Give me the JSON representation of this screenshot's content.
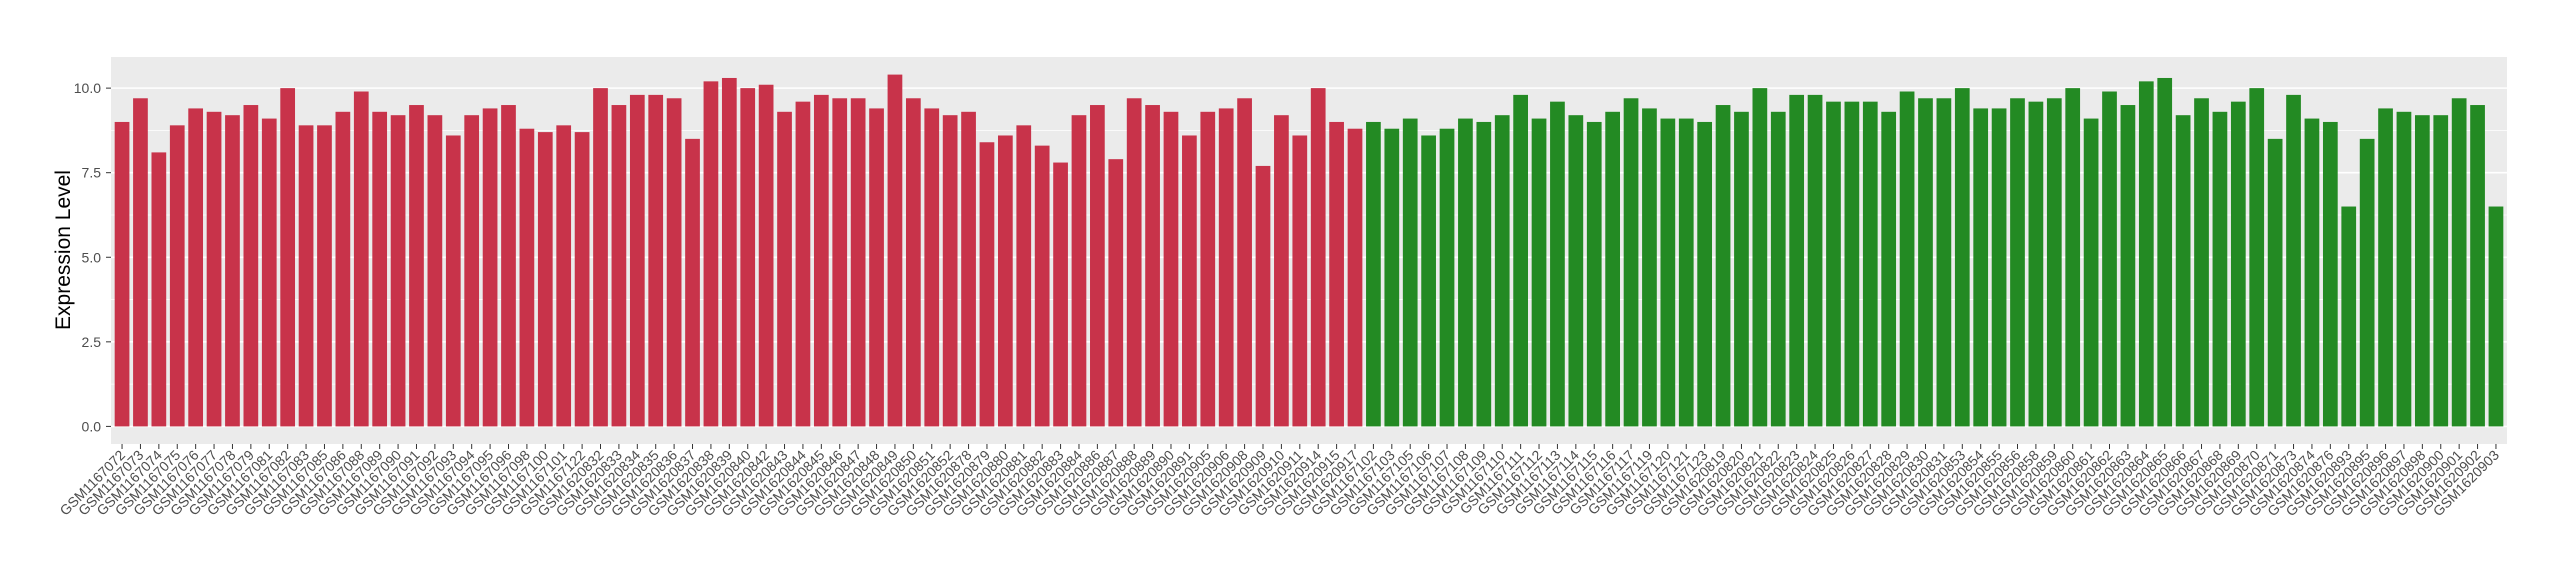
{
  "chart_data": {
    "type": "bar",
    "y_label": "Expression Level",
    "ylim": [
      -0.52,
      10.92
    ],
    "yticks": [
      {
        "value": 0,
        "label": "0.0"
      },
      {
        "value": 2.5,
        "label": "2.5"
      },
      {
        "value": 5,
        "label": "5.0"
      },
      {
        "value": 7.5,
        "label": "7.5"
      },
      {
        "value": 10,
        "label": "10.0"
      }
    ],
    "grid": true,
    "series": [
      {
        "color": "#c8334a",
        "categories": [
          "GSM1167072",
          "GSM1167073",
          "GSM1167074",
          "GSM1167075",
          "GSM1167076",
          "GSM1167077",
          "GSM1167078",
          "GSM1167079",
          "GSM1167081",
          "GSM1167082",
          "GSM1167083",
          "GSM1167085",
          "GSM1167086",
          "GSM1167088",
          "GSM1167089",
          "GSM1167090",
          "GSM1167091",
          "GSM1167092",
          "GSM1167093",
          "GSM1167094",
          "GSM1167095",
          "GSM1167096",
          "GSM1167098",
          "GSM1167100",
          "GSM1167101",
          "GSM1167122",
          "GSM1620832",
          "GSM1620833",
          "GSM1620834",
          "GSM1620835",
          "GSM1620836",
          "GSM1620837",
          "GSM1620838",
          "GSM1620839",
          "GSM1620840",
          "GSM1620842",
          "GSM1620843",
          "GSM1620844",
          "GSM1620845",
          "GSM1620846",
          "GSM1620847",
          "GSM1620848",
          "GSM1620849",
          "GSM1620850",
          "GSM1620851",
          "GSM1620852",
          "GSM1620878",
          "GSM1620879",
          "GSM1620880",
          "GSM1620881",
          "GSM1620882",
          "GSM1620883",
          "GSM1620884",
          "GSM1620886",
          "GSM1620887",
          "GSM1620888",
          "GSM1620889",
          "GSM1620890",
          "GSM1620891",
          "GSM1620905",
          "GSM1620906",
          "GSM1620908",
          "GSM1620909",
          "GSM1620910",
          "GSM1620911",
          "GSM1620914",
          "GSM1620915",
          "GSM1620917"
        ],
        "values": [
          9.0,
          9.7,
          8.1,
          8.9,
          9.4,
          9.3,
          9.2,
          9.5,
          9.1,
          10.0,
          8.9,
          8.9,
          9.3,
          9.9,
          9.3,
          9.2,
          9.5,
          9.2,
          8.6,
          9.2,
          9.4,
          9.5,
          8.8,
          8.7,
          8.9,
          8.7,
          10.0,
          9.5,
          9.8,
          9.8,
          9.7,
          8.5,
          10.2,
          10.3,
          10.0,
          10.1,
          9.3,
          9.6,
          9.8,
          9.7,
          9.7,
          9.4,
          10.4,
          9.7,
          9.4,
          9.2,
          9.3,
          8.4,
          8.6,
          8.9,
          8.3,
          7.8,
          9.2,
          9.5,
          7.9,
          9.7,
          9.5,
          9.3,
          8.6,
          9.3,
          9.4,
          9.7,
          7.7,
          9.2,
          8.6,
          10.0,
          9.0,
          8.8
        ]
      },
      {
        "color": "#238a23",
        "categories": [
          "GSM1167102",
          "GSM1167103",
          "GSM1167105",
          "GSM1167106",
          "GSM1167107",
          "GSM1167108",
          "GSM1167109",
          "GSM1167110",
          "GSM1167111",
          "GSM1167112",
          "GSM1167113",
          "GSM1167114",
          "GSM1167115",
          "GSM1167116",
          "GSM1167117",
          "GSM1167119",
          "GSM1167120",
          "GSM1167121",
          "GSM1167123",
          "GSM1620819",
          "GSM1620820",
          "GSM1620821",
          "GSM1620822",
          "GSM1620823",
          "GSM1620824",
          "GSM1620825",
          "GSM1620826",
          "GSM1620827",
          "GSM1620828",
          "GSM1620829",
          "GSM1620830",
          "GSM1620831",
          "GSM1620853",
          "GSM1620854",
          "GSM1620855",
          "GSM1620856",
          "GSM1620858",
          "GSM1620859",
          "GSM1620860",
          "GSM1620861",
          "GSM1620862",
          "GSM1620863",
          "GSM1620864",
          "GSM1620865",
          "GSM1620866",
          "GSM1620867",
          "GSM1620868",
          "GSM1620869",
          "GSM1620870",
          "GSM1620871",
          "GSM1620873",
          "GSM1620874",
          "GSM1620876",
          "GSM1620893",
          "GSM1620895",
          "GSM1620896",
          "GSM1620897",
          "GSM1620898",
          "GSM1620900",
          "GSM1620901",
          "GSM1620902",
          "GSM1620903"
        ],
        "values": [
          9.0,
          8.8,
          9.1,
          8.6,
          8.8,
          9.1,
          9.0,
          9.2,
          9.8,
          9.1,
          9.6,
          9.2,
          9.0,
          9.3,
          9.7,
          9.4,
          9.1,
          9.1,
          9.0,
          9.5,
          9.3,
          10.0,
          9.3,
          9.8,
          9.8,
          9.6,
          9.6,
          9.6,
          9.3,
          9.9,
          9.7,
          9.7,
          10.0,
          9.4,
          9.4,
          9.7,
          9.6,
          9.7,
          10.0,
          9.1,
          9.9,
          9.5,
          10.2,
          10.3,
          9.2,
          9.7,
          9.3,
          9.6,
          10.0,
          8.5,
          9.8,
          9.1,
          9.0,
          6.5,
          8.5,
          9.4,
          9.3,
          9.2,
          9.2,
          9.7,
          9.5,
          6.5
        ]
      }
    ]
  }
}
